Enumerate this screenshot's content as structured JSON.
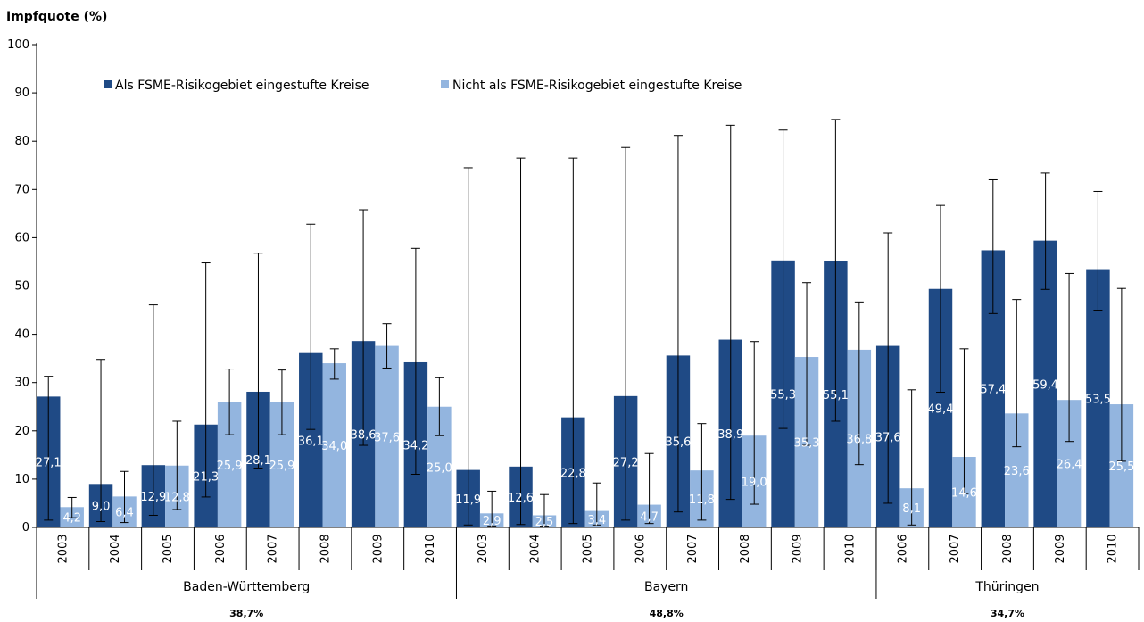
{
  "chart_data": {
    "type": "bar",
    "ylabel": "Impfquote (%)",
    "ylim": [
      0,
      100
    ],
    "yticks": [
      0,
      10,
      20,
      30,
      40,
      50,
      60,
      70,
      80,
      90,
      100
    ],
    "grid": false,
    "legend_position": "top-left",
    "series": [
      {
        "name": "Als FSME-Risikogebiet eingestufte Kreise",
        "color": "#1f4a85"
      },
      {
        "name": "Nicht als FSME-Risikogebiet eingestufte Kreise",
        "color": "#93b5df"
      }
    ],
    "groups": [
      {
        "state": "Baden-Württemberg",
        "rate": "38,7%",
        "entries": [
          {
            "year": "2003",
            "a": 27.1,
            "a_label": "27,1",
            "a_err": [
              1.5,
              31.3
            ],
            "b": 4.2,
            "b_label": "4,2",
            "b_err": [
              2.0,
              6.2
            ]
          },
          {
            "year": "2004",
            "a": 9.0,
            "a_label": "9,0",
            "a_err": [
              1.2,
              34.8
            ],
            "b": 6.4,
            "b_label": "6,4",
            "b_err": [
              1.0,
              11.6
            ]
          },
          {
            "year": "2005",
            "a": 12.9,
            "a_label": "12,9",
            "a_err": [
              2.5,
              46.1
            ],
            "b": 12.8,
            "b_label": "12,8",
            "b_err": [
              3.7,
              22.0
            ]
          },
          {
            "year": "2006",
            "a": 21.3,
            "a_label": "21,3",
            "a_err": [
              6.3,
              54.8
            ],
            "b": 25.9,
            "b_label": "25,9",
            "b_err": [
              19.2,
              32.8
            ]
          },
          {
            "year": "2007",
            "a": 28.1,
            "a_label": "28,1",
            "a_err": [
              12.3,
              56.8
            ],
            "b": 25.9,
            "b_label": "25,9",
            "b_err": [
              19.2,
              32.6
            ]
          },
          {
            "year": "2008",
            "a": 36.1,
            "a_label": "36,1",
            "a_err": [
              20.3,
              62.8
            ],
            "b": 34.0,
            "b_label": "34,0",
            "b_err": [
              30.7,
              37.0
            ]
          },
          {
            "year": "2009",
            "a": 38.6,
            "a_label": "38,6",
            "a_err": [
              17.0,
              65.8
            ],
            "b": 37.6,
            "b_label": "37,6",
            "b_err": [
              33.0,
              42.2
            ]
          },
          {
            "year": "2010",
            "a": 34.2,
            "a_label": "34,2",
            "a_err": [
              11.0,
              57.8
            ],
            "b": 25.0,
            "b_label": "25,0",
            "b_err": [
              19.0,
              31.0
            ]
          }
        ]
      },
      {
        "state": "Bayern",
        "rate": "48,8%",
        "entries": [
          {
            "year": "2003",
            "a": 11.9,
            "a_label": "11,9",
            "a_err": [
              0.5,
              74.5
            ],
            "b": 2.9,
            "b_label": "2,9",
            "b_err": [
              0.3,
              7.5
            ]
          },
          {
            "year": "2004",
            "a": 12.6,
            "a_label": "12,6",
            "a_err": [
              0.6,
              76.5
            ],
            "b": 2.5,
            "b_label": "2,5",
            "b_err": [
              0.3,
              6.8
            ]
          },
          {
            "year": "2005",
            "a": 22.8,
            "a_label": "22,8",
            "a_err": [
              0.8,
              76.5
            ],
            "b": 3.4,
            "b_label": "3,4",
            "b_err": [
              0.5,
              9.2
            ]
          },
          {
            "year": "2006",
            "a": 27.2,
            "a_label": "27,2",
            "a_err": [
              1.5,
              78.7
            ],
            "b": 4.7,
            "b_label": "4,7",
            "b_err": [
              0.8,
              15.3
            ]
          },
          {
            "year": "2007",
            "a": 35.6,
            "a_label": "35,6",
            "a_err": [
              3.2,
              81.2
            ],
            "b": 11.8,
            "b_label": "11,8",
            "b_err": [
              1.5,
              21.5
            ]
          },
          {
            "year": "2008",
            "a": 38.9,
            "a_label": "38,9",
            "a_err": [
              5.8,
              83.3
            ],
            "b": 19.0,
            "b_label": "19,0",
            "b_err": [
              4.8,
              38.5
            ]
          },
          {
            "year": "2009",
            "a": 55.3,
            "a_label": "55,3",
            "a_err": [
              20.5,
              82.3
            ],
            "b": 35.3,
            "b_label": "35,3",
            "b_err": [
              17.0,
              50.7
            ]
          },
          {
            "year": "2010",
            "a": 55.1,
            "a_label": "55,1",
            "a_err": [
              22.0,
              84.5
            ],
            "b": 36.8,
            "b_label": "36,8",
            "b_err": [
              13.0,
              46.7
            ]
          }
        ]
      },
      {
        "state": "Thüringen",
        "rate": "34,7%",
        "entries": [
          {
            "year": "2006",
            "a": 37.6,
            "a_label": "37,6",
            "a_err": [
              5.0,
              61.0
            ],
            "b": 8.1,
            "b_label": "8,1",
            "b_err": [
              0.5,
              28.5
            ]
          },
          {
            "year": "2007",
            "a": 49.4,
            "a_label": "49,4",
            "a_err": [
              28.0,
              66.7
            ],
            "b": 14.6,
            "b_label": "14,6",
            "b_err": [
              7.0,
              37.0
            ]
          },
          {
            "year": "2008",
            "a": 57.4,
            "a_label": "57,4",
            "a_err": [
              44.3,
              72.0
            ],
            "b": 23.6,
            "b_label": "23,6",
            "b_err": [
              16.7,
              47.2
            ]
          },
          {
            "year": "2009",
            "a": 59.4,
            "a_label": "59,4",
            "a_err": [
              49.3,
              73.4
            ],
            "b": 26.4,
            "b_label": "26,4",
            "b_err": [
              17.8,
              52.6
            ]
          },
          {
            "year": "2010",
            "a": 53.5,
            "a_label": "53,5",
            "a_err": [
              45.0,
              69.6
            ],
            "b": 25.5,
            "b_label": "25,5",
            "b_err": [
              13.7,
              49.5
            ]
          }
        ]
      }
    ]
  }
}
